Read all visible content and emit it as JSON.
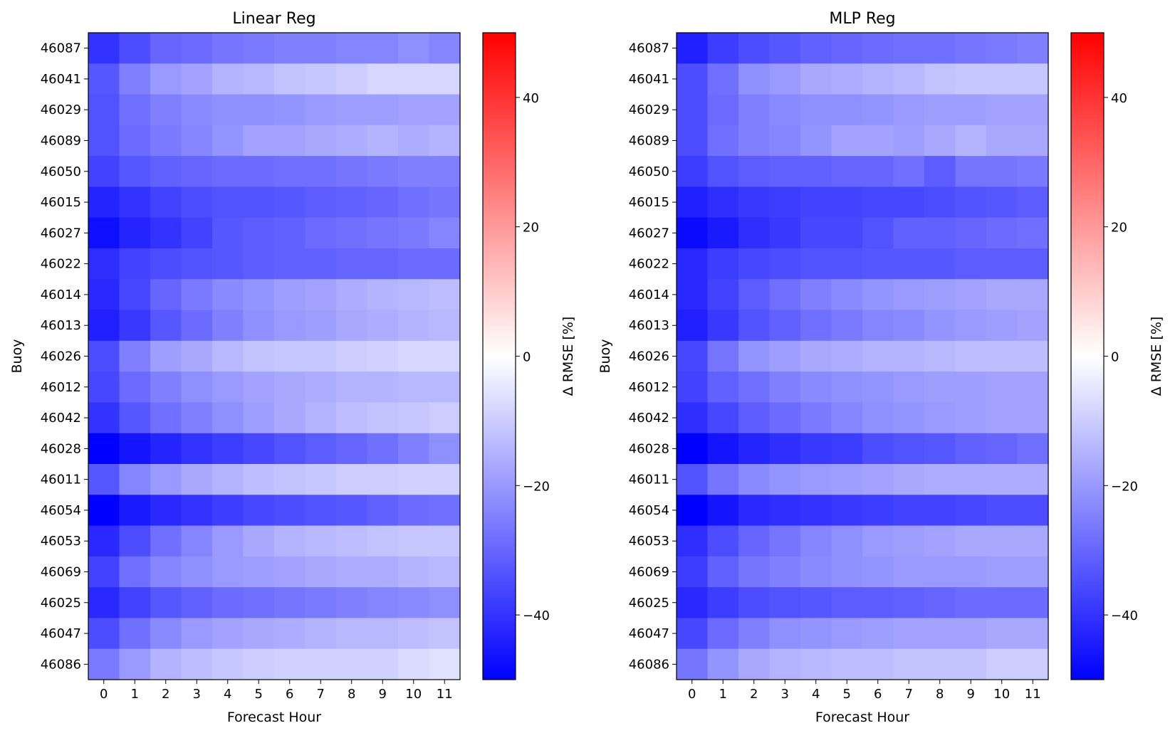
{
  "chart_data": [
    {
      "type": "heatmap",
      "title": "Linear Reg",
      "xlabel": "Forecast Hour",
      "ylabel": "Buoy",
      "x": [
        "0",
        "1",
        "2",
        "3",
        "4",
        "5",
        "6",
        "7",
        "8",
        "9",
        "10",
        "11"
      ],
      "y": [
        "46087",
        "46041",
        "46029",
        "46089",
        "46050",
        "46015",
        "46027",
        "46022",
        "46014",
        "46013",
        "46026",
        "46012",
        "46042",
        "46028",
        "46011",
        "46054",
        "46053",
        "46069",
        "46025",
        "46047",
        "46086"
      ],
      "values": [
        [
          -40,
          -35,
          -30,
          -29,
          -27,
          -26,
          -25,
          -25,
          -24,
          -24,
          -22,
          -24
        ],
        [
          -33,
          -25,
          -20,
          -18,
          -15,
          -14,
          -12,
          -11,
          -10,
          -8,
          -8,
          -8
        ],
        [
          -34,
          -28,
          -25,
          -23,
          -22,
          -22,
          -21,
          -20,
          -19,
          -19,
          -18,
          -18
        ],
        [
          -34,
          -29,
          -26,
          -24,
          -21,
          -18,
          -18,
          -17,
          -16,
          -15,
          -16,
          -15
        ],
        [
          -37,
          -33,
          -31,
          -30,
          -29,
          -29,
          -28,
          -28,
          -27,
          -26,
          -25,
          -25
        ],
        [
          -43,
          -40,
          -37,
          -35,
          -34,
          -34,
          -33,
          -32,
          -31,
          -30,
          -28,
          -27
        ],
        [
          -47,
          -43,
          -40,
          -37,
          -33,
          -32,
          -31,
          -29,
          -28,
          -27,
          -26,
          -24
        ],
        [
          -41,
          -37,
          -35,
          -34,
          -33,
          -32,
          -31,
          -31,
          -30,
          -30,
          -29,
          -29
        ],
        [
          -42,
          -36,
          -30,
          -26,
          -23,
          -21,
          -19,
          -18,
          -16,
          -15,
          -14,
          -13
        ],
        [
          -44,
          -39,
          -33,
          -29,
          -25,
          -22,
          -20,
          -19,
          -17,
          -16,
          -15,
          -14
        ],
        [
          -35,
          -25,
          -19,
          -17,
          -14,
          -12,
          -11,
          -11,
          -10,
          -9,
          -8,
          -8
        ],
        [
          -36,
          -29,
          -25,
          -22,
          -20,
          -18,
          -17,
          -16,
          -15,
          -15,
          -14,
          -14
        ],
        [
          -40,
          -33,
          -28,
          -25,
          -22,
          -19,
          -17,
          -15,
          -13,
          -12,
          -11,
          -10
        ],
        [
          -50,
          -46,
          -43,
          -40,
          -38,
          -36,
          -34,
          -32,
          -30,
          -28,
          -25,
          -22
        ],
        [
          -33,
          -24,
          -20,
          -17,
          -15,
          -13,
          -12,
          -11,
          -10,
          -10,
          -9,
          -9
        ],
        [
          -50,
          -45,
          -42,
          -40,
          -38,
          -36,
          -35,
          -34,
          -33,
          -31,
          -29,
          -28
        ],
        [
          -42,
          -35,
          -28,
          -24,
          -20,
          -17,
          -15,
          -14,
          -13,
          -12,
          -11,
          -11
        ],
        [
          -37,
          -28,
          -24,
          -22,
          -20,
          -19,
          -18,
          -17,
          -16,
          -16,
          -15,
          -14
        ],
        [
          -42,
          -37,
          -33,
          -31,
          -29,
          -28,
          -27,
          -26,
          -25,
          -24,
          -23,
          -22
        ],
        [
          -35,
          -28,
          -23,
          -20,
          -18,
          -17,
          -16,
          -15,
          -14,
          -14,
          -13,
          -12
        ],
        [
          -26,
          -20,
          -15,
          -13,
          -11,
          -10,
          -9,
          -9,
          -9,
          -9,
          -7,
          -6
        ]
      ],
      "colorbar": {
        "label": "Δ RMSE [%]",
        "range": [
          -50,
          50
        ],
        "ticks": [
          "40",
          "20",
          "0",
          "−20",
          "−40"
        ],
        "tick_values": [
          40,
          20,
          0,
          -20,
          -40
        ],
        "colormap": "bwr",
        "low_color": "#0000ff",
        "mid_color": "#ffffff",
        "high_color": "#ff0000"
      }
    },
    {
      "type": "heatmap",
      "title": "MLP Reg",
      "xlabel": "Forecast Hour",
      "ylabel": "Buoy",
      "x": [
        "0",
        "1",
        "2",
        "3",
        "4",
        "5",
        "6",
        "7",
        "8",
        "9",
        "10",
        "11"
      ],
      "y": [
        "46087",
        "46041",
        "46029",
        "46089",
        "46050",
        "46015",
        "46027",
        "46022",
        "46014",
        "46013",
        "46026",
        "46012",
        "46042",
        "46028",
        "46011",
        "46054",
        "46053",
        "46069",
        "46025",
        "46047",
        "46086"
      ],
      "values": [
        [
          -44,
          -38,
          -35,
          -33,
          -31,
          -30,
          -29,
          -28,
          -28,
          -27,
          -26,
          -25
        ],
        [
          -35,
          -28,
          -22,
          -20,
          -17,
          -16,
          -15,
          -14,
          -12,
          -11,
          -11,
          -11
        ],
        [
          -35,
          -29,
          -25,
          -23,
          -22,
          -22,
          -21,
          -20,
          -19,
          -19,
          -18,
          -18
        ],
        [
          -35,
          -28,
          -25,
          -24,
          -21,
          -18,
          -18,
          -19,
          -17,
          -15,
          -17,
          -17
        ],
        [
          -38,
          -34,
          -32,
          -31,
          -31,
          -30,
          -30,
          -28,
          -32,
          -27,
          -27,
          -26
        ],
        [
          -44,
          -41,
          -39,
          -38,
          -37,
          -37,
          -36,
          -36,
          -35,
          -34,
          -33,
          -32
        ],
        [
          -48,
          -45,
          -41,
          -39,
          -36,
          -36,
          -34,
          -31,
          -31,
          -30,
          -29,
          -28
        ],
        [
          -42,
          -38,
          -36,
          -35,
          -34,
          -34,
          -33,
          -33,
          -33,
          -32,
          -32,
          -32
        ],
        [
          -42,
          -37,
          -32,
          -28,
          -25,
          -23,
          -21,
          -20,
          -19,
          -18,
          -17,
          -17
        ],
        [
          -44,
          -39,
          -34,
          -31,
          -28,
          -26,
          -24,
          -23,
          -21,
          -20,
          -19,
          -18
        ],
        [
          -36,
          -27,
          -21,
          -19,
          -17,
          -16,
          -15,
          -15,
          -14,
          -13,
          -13,
          -13
        ],
        [
          -37,
          -31,
          -28,
          -25,
          -23,
          -22,
          -21,
          -20,
          -19,
          -19,
          -18,
          -18
        ],
        [
          -41,
          -36,
          -32,
          -29,
          -26,
          -24,
          -22,
          -21,
          -20,
          -19,
          -18,
          -18
        ],
        [
          -50,
          -46,
          -43,
          -41,
          -39,
          -38,
          -35,
          -34,
          -33,
          -31,
          -30,
          -28
        ],
        [
          -34,
          -27,
          -23,
          -21,
          -20,
          -19,
          -18,
          -17,
          -16,
          -16,
          -16,
          -16
        ],
        [
          -50,
          -46,
          -42,
          -41,
          -40,
          -39,
          -38,
          -37,
          -37,
          -36,
          -35,
          -35
        ],
        [
          -41,
          -35,
          -30,
          -27,
          -24,
          -22,
          -20,
          -19,
          -18,
          -17,
          -17,
          -17
        ],
        [
          -38,
          -31,
          -27,
          -25,
          -23,
          -22,
          -21,
          -20,
          -20,
          -20,
          -19,
          -19
        ],
        [
          -42,
          -38,
          -35,
          -34,
          -33,
          -32,
          -32,
          -31,
          -30,
          -29,
          -29,
          -29
        ],
        [
          -36,
          -29,
          -25,
          -22,
          -21,
          -20,
          -19,
          -18,
          -18,
          -18,
          -17,
          -17
        ],
        [
          -27,
          -21,
          -17,
          -15,
          -14,
          -13,
          -13,
          -12,
          -12,
          -12,
          -10,
          -10
        ]
      ],
      "colorbar": {
        "label": "Δ RMSE [%]",
        "range": [
          -50,
          50
        ],
        "ticks": [
          "40",
          "20",
          "0",
          "−20",
          "−40"
        ],
        "tick_values": [
          40,
          20,
          0,
          -20,
          -40
        ],
        "colormap": "bwr",
        "low_color": "#0000ff",
        "mid_color": "#ffffff",
        "high_color": "#ff0000"
      }
    }
  ]
}
